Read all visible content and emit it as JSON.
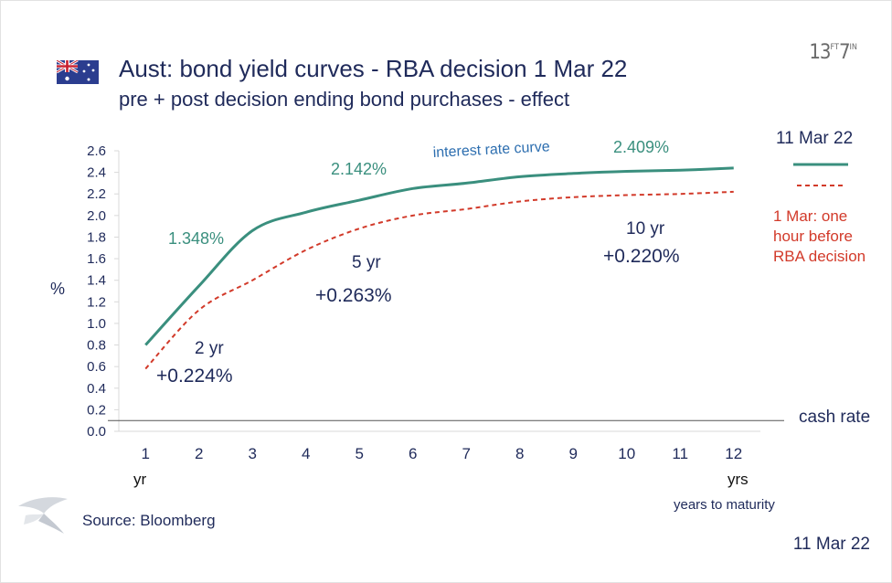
{
  "header": {
    "title": "Aust:  bond yield curves - RBA decision 1 Mar 22",
    "subtitle": "pre + post decision ending bond purchases - effect",
    "brand_main": "13",
    "brand_sup1": "FT",
    "brand_mid": "7",
    "brand_sup2": "IN"
  },
  "footer": {
    "source": "Source: Bloomberg",
    "date": "11 Mar 22"
  },
  "colors": {
    "post": "#3a8f7e",
    "pre": "#d23a2a",
    "text": "#1f2a5a",
    "annot_blue": "#2e6fb0"
  },
  "chart_data": {
    "type": "line",
    "x": [
      1,
      2,
      3,
      4,
      5,
      6,
      7,
      8,
      9,
      10,
      11,
      12
    ],
    "xlim": [
      0.5,
      12.5
    ],
    "ylim": [
      0.0,
      2.6
    ],
    "yticks": [
      "0.0",
      "0.2",
      "0.4",
      "0.6",
      "0.8",
      "1.0",
      "1.2",
      "1.4",
      "1.6",
      "1.8",
      "2.0",
      "2.2",
      "2.4",
      "2.6"
    ],
    "xticks": [
      "1",
      "2",
      "3",
      "4",
      "5",
      "6",
      "7",
      "8",
      "9",
      "10",
      "11",
      "12"
    ],
    "ylabel": "%",
    "xlabel_left": "yr",
    "xlabel_right": "yrs",
    "xlabel": "years to maturity",
    "cash_rate": {
      "value": 0.1,
      "label": "cash rate"
    },
    "series": [
      {
        "name": "11 Mar 22",
        "values": [
          0.8,
          1.348,
          1.86,
          2.03,
          2.142,
          2.25,
          2.3,
          2.36,
          2.39,
          2.409,
          2.42,
          2.44
        ],
        "style": "solid"
      },
      {
        "name": "1 Mar:  one hour before RBA decision",
        "values": [
          0.58,
          1.124,
          1.4,
          1.68,
          1.879,
          2.0,
          2.06,
          2.13,
          2.17,
          2.189,
          2.2,
          2.22
        ],
        "style": "dashed"
      }
    ],
    "legend": {
      "post_label": "11 Mar 22",
      "pre_label_1": "1 Mar:  one",
      "pre_label_2": "hour before",
      "pre_label_3": "RBA decision"
    },
    "annotations": {
      "curve_label": "interest rate curve",
      "level_2y": "1.348%",
      "level_5y": "2.142%",
      "level_10y": "2.409%",
      "chg_2y_title": "2 yr",
      "chg_2y_value": "+0.224%",
      "chg_5y_title": "5 yr",
      "chg_5y_value": "+0.263%",
      "chg_10y_title": "10 yr",
      "chg_10y_value": "+0.220%"
    }
  }
}
